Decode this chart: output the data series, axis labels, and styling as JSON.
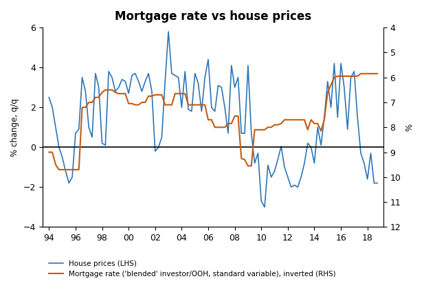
{
  "title": "Mortgage rate vs house prices",
  "ylabel_left": "% change, q/q",
  "ylabel_right": "%",
  "ylim_left": [
    -4,
    6
  ],
  "ylim_right": [
    4,
    12
  ],
  "yticks_left": [
    -4,
    -2,
    0,
    2,
    4,
    6
  ],
  "yticks_right": [
    4,
    5,
    6,
    7,
    8,
    9,
    10,
    11,
    12
  ],
  "xticks": [
    94,
    96,
    98,
    100,
    102,
    104,
    106,
    108,
    110,
    112,
    114,
    116,
    118
  ],
  "xticklabels": [
    "94",
    "96",
    "98",
    "00",
    "02",
    "04",
    "06",
    "08",
    "10",
    "12",
    "14",
    "16",
    "18"
  ],
  "xlim": [
    93.5,
    119.2
  ],
  "line_blue_color": "#2E75B6",
  "line_orange_color": "#C55A11",
  "legend1": "House prices (LHS)",
  "legend2": "Mortgage rate ('blended' investor/OOH, standard variable), inverted (RHS)",
  "house_prices_x": [
    94.0,
    94.25,
    94.5,
    94.75,
    95.0,
    95.25,
    95.5,
    95.75,
    96.0,
    96.25,
    96.5,
    96.75,
    97.0,
    97.25,
    97.5,
    97.75,
    98.0,
    98.25,
    98.5,
    98.75,
    99.0,
    99.25,
    99.5,
    99.75,
    100.0,
    100.25,
    100.5,
    100.75,
    101.0,
    101.25,
    101.5,
    101.75,
    102.0,
    102.25,
    102.5,
    102.75,
    103.0,
    103.25,
    103.5,
    103.75,
    104.0,
    104.25,
    104.5,
    104.75,
    105.0,
    105.25,
    105.5,
    105.75,
    106.0,
    106.25,
    106.5,
    106.75,
    107.0,
    107.25,
    107.5,
    107.75,
    108.0,
    108.25,
    108.5,
    108.75,
    109.0,
    109.25,
    109.5,
    109.75,
    110.0,
    110.25,
    110.5,
    110.75,
    111.0,
    111.25,
    111.5,
    111.75,
    112.0,
    112.25,
    112.5,
    112.75,
    113.0,
    113.25,
    113.5,
    113.75,
    114.0,
    114.25,
    114.5,
    114.75,
    115.0,
    115.25,
    115.5,
    115.75,
    116.0,
    116.25,
    116.5,
    116.75,
    117.0,
    117.25,
    117.5,
    117.75,
    118.0,
    118.25,
    118.5,
    118.75
  ],
  "house_prices_y": [
    2.5,
    2.0,
    1.0,
    0.0,
    -0.5,
    -1.2,
    -1.8,
    -1.5,
    0.7,
    0.9,
    3.5,
    2.8,
    1.0,
    0.5,
    3.7,
    3.0,
    0.2,
    0.1,
    3.8,
    3.5,
    2.8,
    3.0,
    3.4,
    3.3,
    2.7,
    3.6,
    3.7,
    3.3,
    2.8,
    3.3,
    3.7,
    2.8,
    -0.2,
    0.0,
    0.5,
    3.3,
    5.8,
    3.7,
    3.6,
    3.5,
    2.0,
    3.8,
    1.9,
    1.8,
    3.7,
    3.2,
    1.8,
    3.5,
    4.4,
    2.0,
    1.8,
    3.1,
    3.0,
    2.0,
    0.7,
    4.1,
    3.0,
    3.5,
    0.7,
    0.7,
    4.1,
    0.7,
    -0.8,
    -0.3,
    -2.7,
    -3.0,
    -0.9,
    -1.5,
    -1.2,
    -0.6,
    0.05,
    -1.0,
    -1.5,
    -2.0,
    -1.9,
    -2.0,
    -1.5,
    -0.8,
    0.2,
    0.0,
    -0.8,
    1.0,
    0.1,
    1.5,
    3.3,
    2.0,
    4.2,
    1.5,
    4.2,
    3.0,
    0.9,
    3.5,
    3.8,
    1.5,
    -0.3,
    -0.8,
    -1.6,
    -0.3,
    -1.8,
    -1.8
  ],
  "mortgage_rate_x": [
    94.0,
    94.25,
    94.5,
    94.75,
    95.0,
    95.25,
    95.5,
    95.75,
    96.0,
    96.25,
    96.5,
    96.75,
    97.0,
    97.25,
    97.5,
    97.75,
    98.0,
    98.25,
    98.5,
    98.75,
    99.0,
    99.25,
    99.5,
    99.75,
    100.0,
    100.25,
    100.5,
    100.75,
    101.0,
    101.25,
    101.5,
    101.75,
    102.0,
    102.25,
    102.5,
    102.75,
    103.0,
    103.25,
    103.5,
    103.75,
    104.0,
    104.25,
    104.5,
    104.75,
    105.0,
    105.25,
    105.5,
    105.75,
    106.0,
    106.25,
    106.5,
    106.75,
    107.0,
    107.25,
    107.5,
    107.75,
    108.0,
    108.25,
    108.5,
    108.75,
    109.0,
    109.25,
    109.5,
    109.75,
    110.0,
    110.25,
    110.5,
    110.75,
    111.0,
    111.25,
    111.5,
    111.75,
    112.0,
    112.25,
    112.5,
    112.75,
    113.0,
    113.25,
    113.5,
    113.75,
    114.0,
    114.25,
    114.5,
    114.75,
    115.0,
    115.25,
    115.5,
    115.75,
    116.0,
    116.25,
    116.5,
    116.75,
    117.0,
    117.25,
    117.5,
    117.75,
    118.0,
    118.25,
    118.5,
    118.75
  ],
  "mortgage_rate_y": [
    9.0,
    9.0,
    9.5,
    9.7,
    9.7,
    9.7,
    9.7,
    9.7,
    9.7,
    9.7,
    7.2,
    7.2,
    7.0,
    7.0,
    6.8,
    6.8,
    6.6,
    6.5,
    6.5,
    6.5,
    6.6,
    6.65,
    6.65,
    6.65,
    7.05,
    7.05,
    7.1,
    7.1,
    7.0,
    7.0,
    6.75,
    6.75,
    6.7,
    6.7,
    6.7,
    7.1,
    7.1,
    7.1,
    6.65,
    6.65,
    6.65,
    6.65,
    7.1,
    7.1,
    7.1,
    7.1,
    7.1,
    7.1,
    7.7,
    7.7,
    8.0,
    8.0,
    8.0,
    8.0,
    7.85,
    7.85,
    7.55,
    7.55,
    9.25,
    9.3,
    9.55,
    9.55,
    8.1,
    8.1,
    8.1,
    8.1,
    8.0,
    8.0,
    7.9,
    7.9,
    7.85,
    7.7,
    7.7,
    7.7,
    7.7,
    7.7,
    7.7,
    7.7,
    8.1,
    7.7,
    7.85,
    7.85,
    8.15,
    7.7,
    6.6,
    6.3,
    6.0,
    5.95,
    5.95,
    5.95,
    5.95,
    5.95,
    5.95,
    5.95,
    5.85,
    5.85,
    5.85,
    5.85,
    5.85,
    5.85
  ]
}
